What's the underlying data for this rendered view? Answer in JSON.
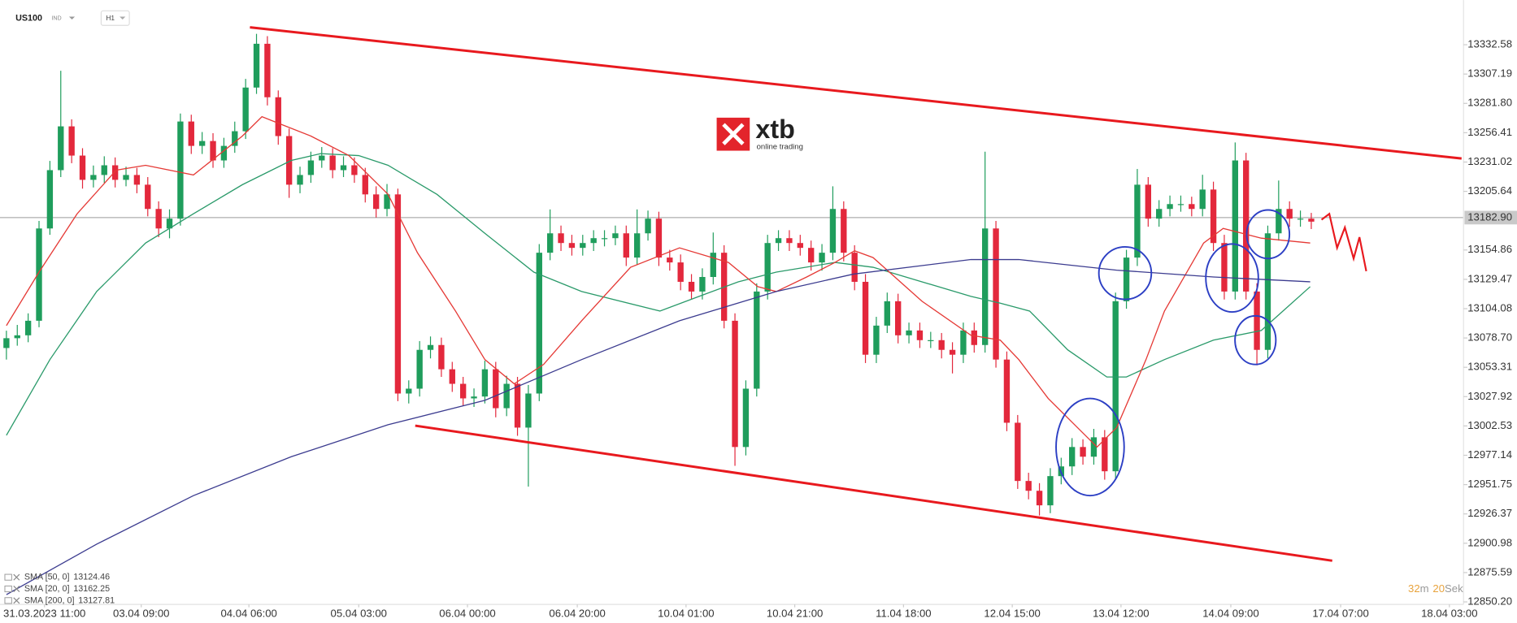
{
  "header": {
    "symbol": "US100",
    "market": "IND",
    "interval": "H1"
  },
  "logo": {
    "brand": "xtb",
    "tagline": "online trading"
  },
  "timer": {
    "minutes": 32,
    "minutes_unit": "m",
    "seconds": 20,
    "seconds_unit": "Sek"
  },
  "chart_data": {
    "type": "candlestick",
    "up_color": "#1f9d5c",
    "down_color": "#e3283c",
    "open": [
      13070.0,
      13078.5,
      13081.0,
      13093.6,
      13173.5,
      13224.0,
      13261.9,
      13236.6,
      13215.6,
      13219.8,
      13228.2,
      13215.6,
      13219.8,
      13211.4,
      13190.4,
      13173.5,
      13182.0,
      13266.1,
      13245.0,
      13249.2,
      13232.4,
      13245.0,
      13257.7,
      13295.5,
      13333.4,
      13287.1,
      13253.5,
      13211.4,
      13219.8,
      13232.4,
      13236.6,
      13224.0,
      13228.2,
      13219.8,
      13203.0,
      13190.4,
      13203.0,
      13030.6,
      13034.8,
      13068.4,
      13072.6,
      13051.6,
      13039.0,
      13026.4,
      13028.0,
      13051.6,
      13017.9,
      13039.0,
      13001.1,
      13030.6,
      13152.5,
      13169.3,
      13160.9,
      13156.7,
      13160.9,
      13165.1,
      13165.1,
      13169.3,
      13148.3,
      13169.3,
      13182.0,
      13148.3,
      13144.1,
      13127.3,
      13118.9,
      13131.5,
      13152.5,
      13093.6,
      12984.3,
      13034.8,
      13118.9,
      13160.9,
      13165.1,
      13160.9,
      13156.7,
      13144.1,
      13152.5,
      13190.4,
      13152.5,
      13127.3,
      13064.2,
      13089.4,
      13110.5,
      13081.0,
      13085.2,
      13076.8,
      13076.8,
      13068.4,
      13064.2,
      13085.2,
      13072.6,
      13173.5,
      13060.0,
      13005.3,
      12954.9,
      12946.4,
      12933.8,
      12959.1,
      12967.5,
      12984.3,
      12975.9,
      12992.7,
      12963.3,
      13110.5,
      13148.3,
      13211.4,
      13182.0,
      13190.4,
      13194.6,
      13194.6,
      13190.4,
      13207.2,
      13160.9,
      13118.9,
      13232.4,
      13118.9,
      13068.4,
      13169.3,
      13190.4,
      13182.0,
      13182.0
    ],
    "high": [
      13085,
      13090,
      13100,
      13180,
      13232,
      13310,
      13268,
      13243,
      13228,
      13236,
      13235,
      13227,
      13226,
      13218,
      13197,
      13190,
      13273,
      13272,
      13257,
      13256,
      13252,
      13266,
      13303,
      13342,
      13340,
      13293,
      13260,
      13227,
      13240,
      13244,
      13243,
      13236,
      13235,
      13226,
      13210,
      13212,
      13208,
      13042,
      13076,
      13080,
      13079,
      13058,
      13045,
      13035,
      13059,
      13058,
      13046,
      13045,
      13038,
      13160,
      13190,
      13176,
      13168,
      13168,
      13172,
      13172,
      13176,
      13176,
      13190,
      13189,
      13188,
      13155,
      13151,
      13134,
      13139,
      13170,
      13159,
      13100,
      13042,
      13126,
      13168,
      13172,
      13172,
      13168,
      13163,
      13160,
      13210,
      13197,
      13159,
      13134,
      13097,
      13118,
      13117,
      13092,
      13092,
      13084,
      13083,
      13075,
      13092,
      13092,
      13240,
      13180,
      13067,
      13012,
      12962,
      12953,
      12966,
      12975,
      12992,
      12991,
      13000,
      12999,
      13118,
      13155,
      13225,
      13218,
      13198,
      13202,
      13202,
      13201,
      13220,
      13214,
      13168,
      13248,
      13239,
      13126,
      13176,
      13215,
      13197,
      13189,
      13187
    ],
    "low": [
      13060,
      13072,
      13075,
      13088,
      13168,
      13218,
      13230,
      13208,
      13209,
      13213,
      13209,
      13210,
      13204,
      13184,
      13166,
      13165,
      13176,
      13238,
      13238,
      13226,
      13226,
      13239,
      13251,
      13290,
      13280,
      13246,
      13200,
      13204,
      13213,
      13226,
      13217,
      13218,
      13213,
      13196,
      13183,
      13184,
      13024,
      13022,
      13028,
      13061,
      13045,
      13032,
      13020,
      13019,
      13022,
      13010,
      13011,
      12994,
      12950,
      13024,
      13146,
      13154,
      13150,
      13150,
      13154,
      13158,
      13159,
      13141,
      13142,
      13163,
      13141,
      13137,
      13120,
      13112,
      13112,
      13125,
      13087,
      12968,
      12977,
      13028,
      13112,
      13154,
      13154,
      13150,
      13137,
      13137,
      13146,
      13145,
      13120,
      13057,
      13057,
      13083,
      13074,
      13074,
      13070,
      13070,
      13061,
      13048,
      13057,
      13066,
      13066,
      13053,
      12998,
      12948,
      12939,
      12925,
      12927,
      12952,
      12960,
      12969,
      12969,
      12956,
      12956,
      13104,
      13141,
      13175,
      13175,
      13184,
      13188,
      13184,
      13184,
      13154,
      13112,
      13112,
      13112,
      13055,
      13061,
      13163,
      13175,
      13175,
      13173
    ],
    "close": [
      13078.5,
      13081.0,
      13093.6,
      13173.5,
      13224.0,
      13261.9,
      13236.6,
      13215.6,
      13219.8,
      13228.2,
      13215.6,
      13219.8,
      13211.4,
      13190.4,
      13173.5,
      13182.0,
      13266.1,
      13245.0,
      13249.2,
      13232.4,
      13245.0,
      13257.7,
      13295.5,
      13333.4,
      13287.1,
      13253.5,
      13211.4,
      13219.8,
      13232.4,
      13236.6,
      13224.0,
      13228.2,
      13219.8,
      13203.0,
      13190.4,
      13203.0,
      13030.6,
      13034.8,
      13068.4,
      13072.6,
      13051.6,
      13039.0,
      13026.4,
      13028.0,
      13051.6,
      13017.9,
      13039.0,
      13001.1,
      13030.6,
      13152.5,
      13169.3,
      13160.9,
      13156.7,
      13160.9,
      13165.1,
      13165.1,
      13169.3,
      13148.3,
      13169.3,
      13182.0,
      13148.3,
      13144.1,
      13127.3,
      13118.9,
      13131.5,
      13152.5,
      13093.6,
      12984.3,
      13034.8,
      13118.9,
      13160.9,
      13165.1,
      13160.9,
      13156.7,
      13144.1,
      13152.5,
      13190.4,
      13152.5,
      13127.3,
      13064.2,
      13089.4,
      13110.5,
      13081.0,
      13085.2,
      13076.8,
      13076.8,
      13068.4,
      13064.2,
      13085.2,
      13072.6,
      13173.5,
      13060.0,
      13005.3,
      12954.9,
      12946.4,
      12933.8,
      12959.1,
      12967.5,
      12984.3,
      12975.9,
      12992.7,
      12963.3,
      13110.5,
      13148.3,
      13211.4,
      13182.0,
      13190.4,
      13194.6,
      13194.6,
      13190.4,
      13207.2,
      13160.9,
      13118.9,
      13232.4,
      13118.9,
      13068.4,
      13169.3,
      13190.4,
      13182.0,
      13182.0,
      13179.4
    ],
    "xlim": [
      -0.5,
      134
    ],
    "xticks": [
      {
        "value": 3.5,
        "label": "31.03.2023  11:00"
      },
      {
        "value": 12.4,
        "label": "03.04  09:00"
      },
      {
        "value": 22.3,
        "label": "04.04  06:00"
      },
      {
        "value": 32.4,
        "label": "05.04  03:00"
      },
      {
        "value": 42.4,
        "label": "06.04  00:00"
      },
      {
        "value": 52.5,
        "label": "06.04  20:00"
      },
      {
        "value": 62.5,
        "label": "10.04  01:00"
      },
      {
        "value": 72.5,
        "label": "10.04  21:00"
      },
      {
        "value": 82.5,
        "label": "11.04  18:00"
      },
      {
        "value": 92.5,
        "label": "12.04  15:00"
      },
      {
        "value": 102.5,
        "label": "13.04  12:00"
      },
      {
        "value": 112.6,
        "label": "14.04  09:00"
      },
      {
        "value": 122.7,
        "label": "17.04  07:00"
      },
      {
        "value": 132.7,
        "label": "18.04  03:00"
      }
    ],
    "ylim": [
      12848,
      13367
    ],
    "yticks": [
      13332.58,
      13307.19,
      {
        "value": 13281.8,
        "label": "13281.80"
      },
      13256.41,
      13231.02,
      13205.64,
      13154.86,
      13129.47,
      13104.08,
      {
        "value": 13078.7,
        "label": "13078.70"
      },
      13053.31,
      13027.92,
      13002.53,
      12977.14,
      12951.75,
      12926.37,
      12900.98,
      12875.59,
      {
        "value": 12850.2,
        "label": "12850.20"
      }
    ],
    "last_price": {
      "value": 13182.9,
      "label": "13182.90"
    },
    "indicators": [
      {
        "name": "SMA [50, 0]",
        "last": 13124.46,
        "color": "#2a9a6a",
        "x": [
          0,
          4,
          8.3,
          12.8,
          17.2,
          21.7,
          26.2,
          28.9,
          32.4,
          35.1,
          39.6,
          44.0,
          48.5,
          52.9,
          60.1,
          63.7,
          67.3,
          70.8,
          76.2,
          79.7,
          84.2,
          88.7,
          91.4,
          94.1,
          97.6,
          101.2,
          103.0,
          106.5,
          111.0,
          115.4,
          119.9
        ],
        "values": [
          12994.4,
          13060.0,
          13118.9,
          13160.9,
          13186.2,
          13211.4,
          13232.4,
          13238.3,
          13236.6,
          13228.2,
          13203.0,
          13169.3,
          13135.7,
          13118.9,
          13102.0,
          13114.7,
          13127.3,
          13135.7,
          13144.1,
          13139.9,
          13127.3,
          13114.7,
          13108.8,
          13102.0,
          13068.4,
          13044.9,
          13044.9,
          13060.0,
          13076.8,
          13085.2,
          13123.1
        ]
      },
      {
        "name": "SMA [20, 0]",
        "last": 13162.25,
        "color": "#e53935",
        "x": [
          0,
          3.0,
          6.5,
          10.1,
          12.8,
          17.2,
          21.7,
          23.5,
          25.3,
          28.0,
          31.5,
          35.1,
          37.8,
          41.3,
          44.0,
          46.7,
          49.4,
          52.9,
          57.4,
          61.9,
          66.4,
          69.1,
          70.8,
          73.6,
          76.2,
          78.0,
          79.7,
          84.2,
          88.7,
          91.4,
          93.1,
          95.8,
          98.5,
          100.3,
          102.1,
          104.8,
          106.5,
          110.1,
          111.9,
          115.4,
          119.9
        ],
        "values": [
          13089.4,
          13135.7,
          13186.2,
          13224.0,
          13228.2,
          13219.8,
          13253.5,
          13270.3,
          13263.5,
          13253.5,
          13236.6,
          13203.0,
          13152.5,
          13102.0,
          13060.0,
          13039.0,
          13055.8,
          13093.6,
          13139.9,
          13156.7,
          13144.1,
          13123.1,
          13118.9,
          13131.5,
          13144.1,
          13154.2,
          13148.3,
          13110.5,
          13081.0,
          13076.8,
          13060.0,
          13026.4,
          13001.1,
          12984.3,
          13001.1,
          13060.0,
          13102.0,
          13160.9,
          13173.5,
          13165.1,
          13160.9
        ]
      },
      {
        "name": "SMA [200, 0]",
        "last": 13127.81,
        "color": "#3b3b8f",
        "x": [
          0,
          8.3,
          17.2,
          26.2,
          35.1,
          44.0,
          52.9,
          61.9,
          70.8,
          77.9,
          88.7,
          93.1,
          102.1,
          111.0,
          119.9
        ],
        "values": [
          12856.5,
          12900.2,
          12942.2,
          12975.9,
          13003.6,
          13024.7,
          13060.0,
          13093.6,
          13118.9,
          13134.0,
          13146.6,
          13146.6,
          13137.4,
          13131.5,
          13127.3
        ]
      }
    ]
  }
}
